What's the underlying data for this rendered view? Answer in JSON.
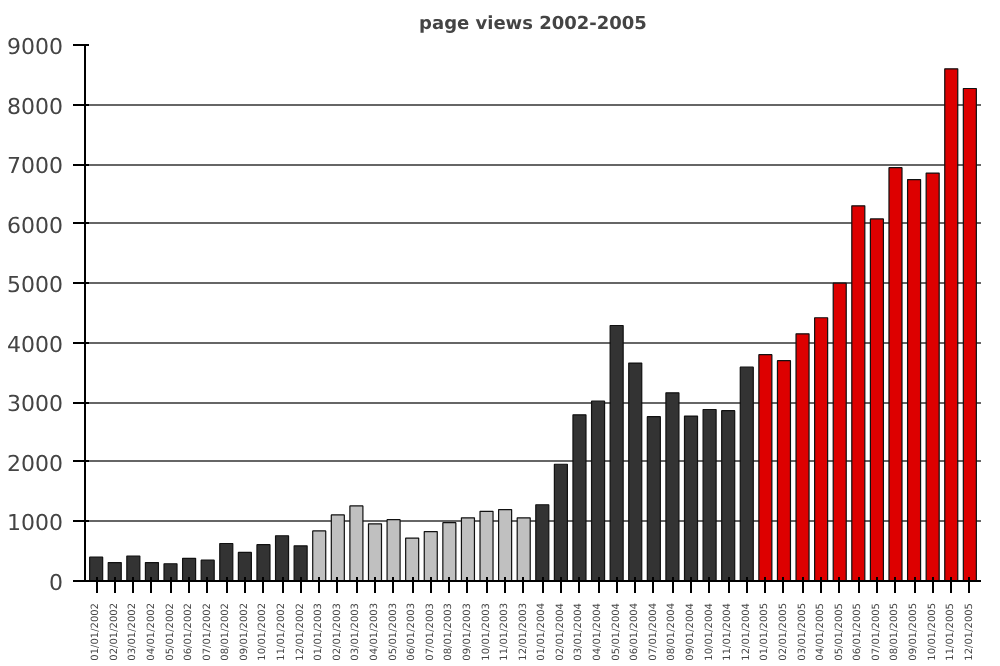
{
  "chart_data": {
    "type": "bar",
    "title": "page views 2002-2005",
    "categories": [
      "01/01/2002",
      "02/01/2002",
      "03/01/2002",
      "04/01/2002",
      "05/01/2002",
      "06/01/2002",
      "07/01/2002",
      "08/01/2002",
      "09/01/2002",
      "10/01/2002",
      "11/01/2002",
      "12/01/2002",
      "01/01/2003",
      "02/01/2003",
      "03/01/2003",
      "04/01/2003",
      "05/01/2003",
      "06/01/2003",
      "07/01/2003",
      "08/01/2003",
      "09/01/2003",
      "10/01/2003",
      "11/01/2003",
      "12/01/2003",
      "01/01/2004",
      "02/01/2004",
      "03/01/2004",
      "04/01/2004",
      "05/01/2004",
      "06/01/2004",
      "07/01/2004",
      "08/01/2004",
      "09/01/2004",
      "10/01/2004",
      "11/01/2004",
      "12/01/2004",
      "01/01/2005",
      "02/01/2005",
      "03/01/2005",
      "04/01/2005",
      "05/01/2005",
      "06/01/2005",
      "07/01/2005",
      "08/01/2005",
      "09/01/2005",
      "10/01/2005",
      "11/01/2005",
      "12/01/2005"
    ],
    "values": [
      400,
      310,
      420,
      310,
      290,
      380,
      350,
      630,
      480,
      610,
      760,
      590,
      840,
      1110,
      1260,
      960,
      1030,
      720,
      830,
      980,
      1060,
      1170,
      1200,
      1060,
      1280,
      1960,
      2790,
      3020,
      4290,
      3660,
      2760,
      3160,
      2770,
      2880,
      2860,
      3590,
      3800,
      3700,
      4150,
      4420,
      5000,
      6300,
      6080,
      6940,
      6740,
      6850,
      8600,
      8270
    ],
    "colors": [
      "#333333",
      "#333333",
      "#333333",
      "#333333",
      "#333333",
      "#333333",
      "#333333",
      "#333333",
      "#333333",
      "#333333",
      "#333333",
      "#333333",
      "#c0c0c0",
      "#c0c0c0",
      "#c0c0c0",
      "#c0c0c0",
      "#c0c0c0",
      "#c0c0c0",
      "#c0c0c0",
      "#c0c0c0",
      "#c0c0c0",
      "#c0c0c0",
      "#c0c0c0",
      "#c0c0c0",
      "#333333",
      "#333333",
      "#333333",
      "#333333",
      "#333333",
      "#333333",
      "#333333",
      "#333333",
      "#333333",
      "#333333",
      "#333333",
      "#333333",
      "#dd0000",
      "#dd0000",
      "#dd0000",
      "#dd0000",
      "#dd0000",
      "#dd0000",
      "#dd0000",
      "#dd0000",
      "#dd0000",
      "#dd0000",
      "#dd0000",
      "#dd0000"
    ],
    "ylim": [
      0,
      9000
    ],
    "yticks": [
      0,
      1000,
      2000,
      3000,
      4000,
      5000,
      6000,
      7000,
      8000,
      9000
    ],
    "grid": "y"
  }
}
